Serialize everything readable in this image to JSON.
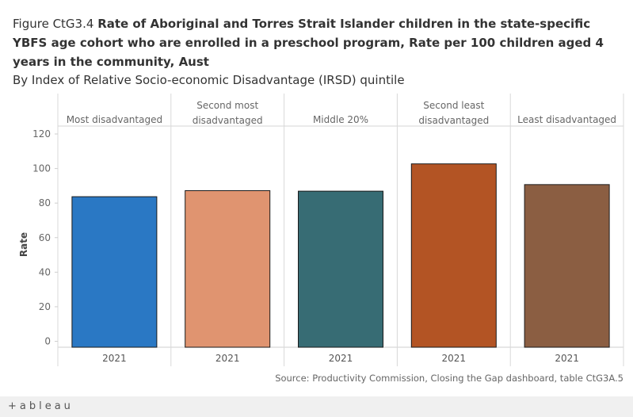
{
  "title": {
    "figure_label": "Figure CtG3.4",
    "main": "Rate of Aboriginal and Torres Strait Islander children in the state-specific YBFS age cohort who are enrolled in a preschool program, Rate per 100 children aged 4 years in the community, Aust",
    "subtitle": "By Index of Relative Socio-economic Disadvantage (IRSD) quintile"
  },
  "source": "Source: Productivity Commission, Closing the Gap dashboard, table CtG3A.5",
  "footer": {
    "logo_text": "+ableau"
  },
  "chart_data": {
    "type": "bar",
    "ylabel": "Rate",
    "ylim": [
      0,
      120
    ],
    "yticks": [
      0,
      20,
      40,
      60,
      80,
      100,
      120
    ],
    "panels": [
      {
        "name": "Most disadvantaged",
        "header_lines": [
          "Most disadvantaged"
        ],
        "category": "2021",
        "value": 83.7,
        "color": "#2a78c4"
      },
      {
        "name": "Second most disadvantaged",
        "header_lines": [
          "Second most",
          "disadvantaged"
        ],
        "category": "2021",
        "value": 87.2,
        "color": "#e09470"
      },
      {
        "name": "Middle 20%",
        "header_lines": [
          "Middle 20%"
        ],
        "category": "2021",
        "value": 86.9,
        "color": "#376c74"
      },
      {
        "name": "Second least disadvantaged",
        "header_lines": [
          "Second least",
          "disadvantaged"
        ],
        "category": "2021",
        "value": 102.7,
        "color": "#b35424"
      },
      {
        "name": "Least disadvantaged",
        "header_lines": [
          "Least disadvantaged"
        ],
        "category": "2021",
        "value": 90.7,
        "color": "#8b5e42"
      }
    ]
  }
}
